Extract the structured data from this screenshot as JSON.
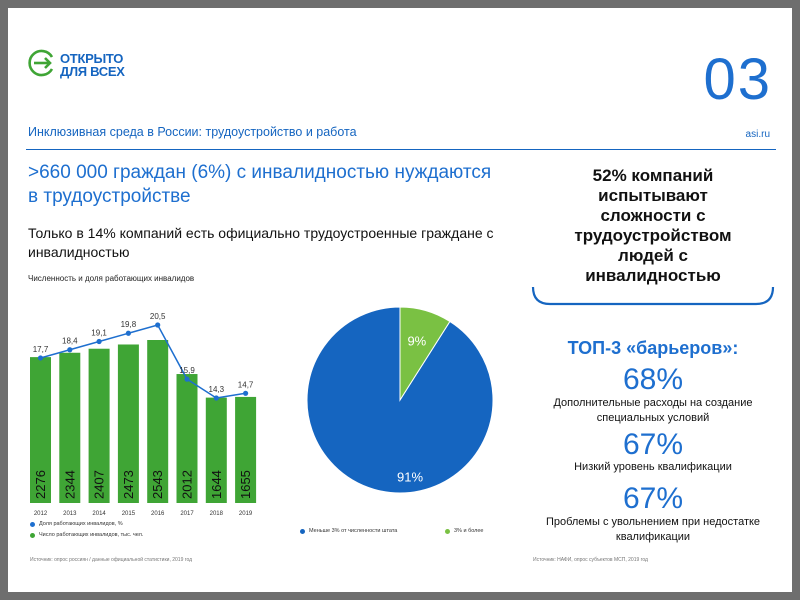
{
  "brand": {
    "line1": "ОТКРЫТО",
    "line2": "ДЛЯ ВСЕХ",
    "colors": {
      "green": "#3fa535",
      "blue": "#1565c0"
    }
  },
  "page_number": "03",
  "section_title": "Инклюзивная среда в России: трудоустройство и работа",
  "site": "asi.ru",
  "headline": ">660 000 граждан (6%) с инвалидностью нуждаются в трудоустройстве",
  "subhead": "Только в 14% компаний есть официально трудоустроенные граждане с инвалидностью",
  "right_headline": "52% компаний испытывают сложности с трудоустройством людей с инвалидностью",
  "top3_title": "ТОП-3 «барьеров»:",
  "barriers": [
    {
      "value": "68%",
      "label": "Дополнительные расходы на создание специальных условий"
    },
    {
      "value": "67%",
      "label": "Низкий уровень квалификации"
    },
    {
      "value": "67%",
      "label": "Проблемы с увольнением при недостатке квалификации"
    }
  ],
  "chart_data": [
    {
      "type": "bar",
      "title": "Численность и доля работающих инвалидов",
      "categories": [
        "2012",
        "2013",
        "2014",
        "2015",
        "2016",
        "2017",
        "2018",
        "2019"
      ],
      "series": [
        {
          "name": "Число работающих инвалидов, тыс. чел.",
          "type": "bar",
          "color": "#3fa535",
          "values": [
            2276,
            2344,
            2407,
            2473,
            2543,
            2012,
            1644,
            1655
          ]
        },
        {
          "name": "Доля работающих инвалидов, %",
          "type": "line",
          "color": "#1e6fcf",
          "values": [
            17.7,
            18.4,
            19.1,
            19.8,
            20.5,
            15.9,
            14.3,
            14.7
          ],
          "labels": [
            "17,7",
            "18,4",
            "19,1",
            "19,8",
            "20,5",
            "15,9",
            "14,3",
            "14,7"
          ]
        }
      ],
      "legend": "bottom"
    },
    {
      "type": "pie",
      "slices": [
        {
          "name": "Меньше 3% от численности штата",
          "value": 91,
          "label": "91%",
          "color": "#1565c0"
        },
        {
          "name": "3% и более",
          "value": 9,
          "label": "9%",
          "color": "#7ac143"
        }
      ],
      "legend": "bottom"
    }
  ],
  "sources": {
    "left": "Источник: опрос россиян / данные официальной статистики, 2019 год",
    "right": "Источник: НАФИ, опрос субъектов МСП, 2019 год"
  }
}
